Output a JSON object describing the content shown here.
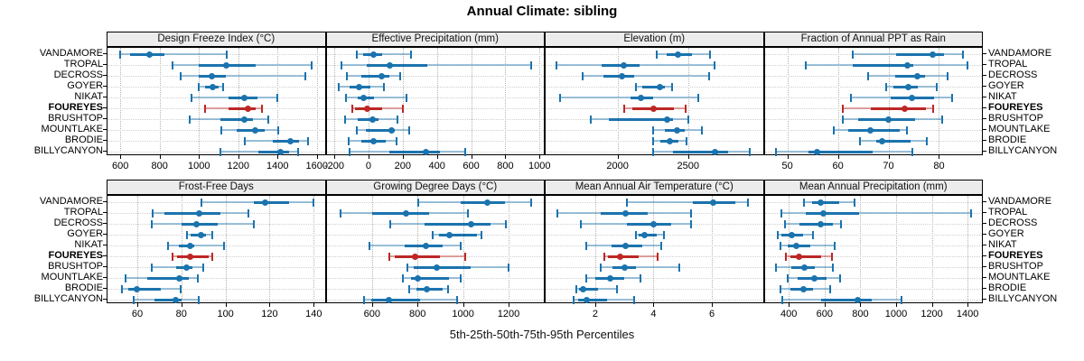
{
  "title": "Annual Climate: sibling",
  "caption": "5th-25th-50th-75th-95th Percentiles",
  "highlight_site": "FOUREYES",
  "colors": {
    "normal": "#1b73ae",
    "normal_light": "rgba(27,115,174,0.42)",
    "highlight": "#bd2724",
    "highlight_light": "rgba(189,39,36,0.42)",
    "strip_bg": "#ececec",
    "panel_border": "#000000"
  },
  "chart_data": {
    "type": "dotplot-percentile",
    "percentile_labels": [
      "5th",
      "25th",
      "50th",
      "75th",
      "95th"
    ],
    "legend_position": "none",
    "grid": "dotted",
    "categories": [
      "VANDAMORE",
      "TROPAL",
      "DECROSS",
      "GOYER",
      "NIKAT",
      "FOUREYES",
      "BRUSHTOP",
      "MOUNTLAKE",
      "BRODIE",
      "BILLYCANYON"
    ],
    "panels": [
      {
        "title": "Design Freeze Index (°C)",
        "xlim": [
          535,
          1640
        ],
        "ticks": [
          600,
          800,
          1000,
          1200,
          1400,
          1600
        ],
        "values": [
          [
            600,
            650,
            748,
            825,
            1140
          ],
          [
            865,
            1000,
            1140,
            1290,
            1575
          ],
          [
            905,
            1000,
            1065,
            1135,
            1540
          ],
          [
            1000,
            1030,
            1068,
            1100,
            1125
          ],
          [
            960,
            1150,
            1230,
            1300,
            1400
          ],
          [
            1030,
            1150,
            1250,
            1290,
            1320
          ],
          [
            955,
            1110,
            1230,
            1275,
            1355
          ],
          [
            1115,
            1190,
            1285,
            1335,
            1405
          ],
          [
            1235,
            1375,
            1465,
            1510,
            1555
          ],
          [
            1110,
            1300,
            1415,
            1460,
            1505
          ]
        ]
      },
      {
        "title": "Effective Precipitation (mm)",
        "xlim": [
          -245,
          1025
        ],
        "ticks": [
          -200,
          0,
          200,
          400,
          600,
          800,
          1000
        ],
        "values": [
          [
            -70,
            -30,
            30,
            80,
            250
          ],
          [
            -160,
            -10,
            125,
            345,
            950
          ],
          [
            -125,
            -40,
            75,
            120,
            185
          ],
          [
            -175,
            -110,
            -55,
            10,
            90
          ],
          [
            -130,
            -65,
            -30,
            30,
            220
          ],
          [
            -95,
            -80,
            -10,
            80,
            200
          ],
          [
            -135,
            -65,
            25,
            60,
            170
          ],
          [
            -70,
            -15,
            135,
            155,
            240
          ],
          [
            -115,
            -40,
            30,
            100,
            165
          ],
          [
            -110,
            120,
            335,
            420,
            565
          ]
        ]
      },
      {
        "title": "Elevation (m)",
        "xlim": [
          1490,
          3030
        ],
        "ticks": [
          2000,
          2500
        ],
        "values": [
          [
            2280,
            2345,
            2425,
            2530,
            2655
          ],
          [
            1565,
            1890,
            2045,
            2155,
            2685
          ],
          [
            1750,
            1900,
            2030,
            2120,
            2650
          ],
          [
            2130,
            2175,
            2300,
            2335,
            2385
          ],
          [
            1590,
            2090,
            2165,
            2250,
            2570
          ],
          [
            2050,
            2105,
            2255,
            2400,
            2480
          ],
          [
            1810,
            1940,
            2350,
            2390,
            2500
          ],
          [
            2255,
            2335,
            2420,
            2475,
            2600
          ],
          [
            2255,
            2305,
            2370,
            2430,
            2490
          ],
          [
            2255,
            2390,
            2690,
            2785,
            2940
          ]
        ]
      },
      {
        "title": "Fraction of Annual PPT as Rain",
        "xlim": [
          45.5,
          88.5
        ],
        "ticks": [
          50,
          60,
          70,
          80
        ],
        "values": [
          [
            63,
            71.5,
            78.7,
            81,
            84.7
          ],
          [
            53.7,
            63,
            73.7,
            75,
            85.6
          ],
          [
            65.9,
            71.4,
            75.7,
            77.3,
            81.7
          ],
          [
            69.6,
            71,
            74,
            75.8,
            79.5
          ],
          [
            62.6,
            70.5,
            74.7,
            79,
            82.6
          ],
          [
            61,
            66.5,
            73.3,
            77.5,
            78.8
          ],
          [
            61,
            64,
            70,
            75.2,
            80.7
          ],
          [
            59.1,
            62,
            66.4,
            72.3,
            73.7
          ],
          [
            64.4,
            67.5,
            68.8,
            74.3,
            77.6
          ],
          [
            47.8,
            54.2,
            55.9,
            66.9,
            74.8
          ]
        ]
      },
      {
        "title": "Frost-Free Days",
        "xlim": [
          46.5,
          145
        ],
        "ticks": [
          60,
          80,
          100,
          120,
          140
        ],
        "values": [
          [
            89,
            113,
            118,
            129,
            140
          ],
          [
            67,
            72.5,
            88,
            97.5,
            110.5
          ],
          [
            66.5,
            80,
            87,
            96.5,
            113
          ],
          [
            82.5,
            84,
            89,
            91,
            94
          ],
          [
            74,
            79,
            84,
            86,
            99.5
          ],
          [
            76,
            78,
            84,
            92.5,
            94
          ],
          [
            66.5,
            77.5,
            82.5,
            85,
            90
          ],
          [
            54.5,
            64.5,
            79,
            83.5,
            87.5
          ],
          [
            53,
            56,
            60,
            70.5,
            79.5
          ],
          [
            58.5,
            68,
            77.5,
            80,
            88
          ]
        ]
      },
      {
        "title": "Growing Degree Days (°C)",
        "xlim": [
          400,
          1355
        ],
        "ticks": [
          600,
          800,
          1000,
          1200
        ],
        "values": [
          [
            805,
            990,
            1105,
            1185,
            1300
          ],
          [
            460,
            600,
            748,
            850,
            1020
          ],
          [
            680,
            830,
            1035,
            1120,
            1190
          ],
          [
            865,
            895,
            940,
            1060,
            1080
          ],
          [
            590,
            745,
            835,
            910,
            990
          ],
          [
            675,
            700,
            790,
            900,
            1010
          ],
          [
            755,
            785,
            885,
            1035,
            1200
          ],
          [
            735,
            770,
            800,
            940,
            990
          ],
          [
            765,
            795,
            840,
            910,
            935
          ],
          [
            565,
            595,
            675,
            810,
            975
          ]
        ]
      },
      {
        "title": "Mean Annual Air Temperature (°C)",
        "xlim": [
          0.3,
          7.75
        ],
        "ticks": [
          2,
          4,
          6
        ],
        "values": [
          [
            3.1,
            5.35,
            6.05,
            6.8,
            7.25
          ],
          [
            0.7,
            2.2,
            3.05,
            3.8,
            5.3
          ],
          [
            1.5,
            3.1,
            4.0,
            4.6,
            5.3
          ],
          [
            3.4,
            3.5,
            3.7,
            4.1,
            4.35
          ],
          [
            1.7,
            2.55,
            3.05,
            3.6,
            4.25
          ],
          [
            2.3,
            2.45,
            2.85,
            3.5,
            4.15
          ],
          [
            2.2,
            2.6,
            3.0,
            3.4,
            4.9
          ],
          [
            1.7,
            2.0,
            2.5,
            3.0,
            3.55
          ],
          [
            1.35,
            1.45,
            1.6,
            2.1,
            2.75
          ],
          [
            1.25,
            1.4,
            1.7,
            2.4,
            3.35
          ]
        ]
      },
      {
        "title": "Mean Annual Precipitation (mm)",
        "xlim": [
          265,
          1480
        ],
        "ticks": [
          400,
          600,
          800,
          1000,
          1200,
          1400
        ],
        "values": [
          [
            485,
            530,
            580,
            680,
            770
          ],
          [
            360,
            495,
            595,
            795,
            1420
          ],
          [
            380,
            460,
            580,
            645,
            690
          ],
          [
            340,
            360,
            415,
            480,
            535
          ],
          [
            355,
            395,
            440,
            520,
            655
          ],
          [
            385,
            410,
            455,
            580,
            640
          ],
          [
            330,
            415,
            485,
            545,
            645
          ],
          [
            395,
            450,
            545,
            610,
            685
          ],
          [
            355,
            410,
            480,
            535,
            630
          ],
          [
            365,
            580,
            785,
            865,
            1030
          ]
        ]
      }
    ]
  }
}
